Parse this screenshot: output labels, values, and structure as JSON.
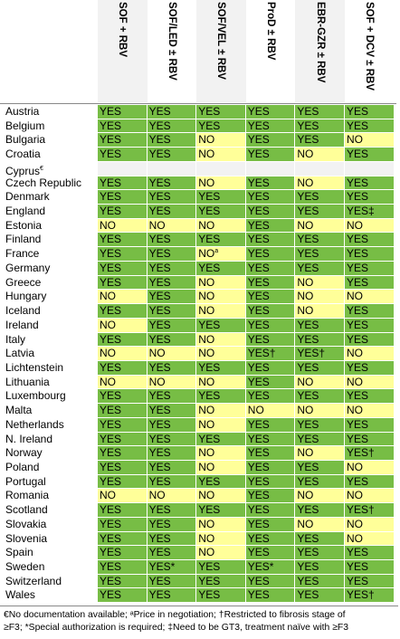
{
  "header": {
    "columns": [
      "SOF + RBV",
      "SOF/LED ± RBV",
      "SOF/VEL ± RBV",
      "ProD ± RBV",
      "EBR-GZR ± RBV",
      "SOF + DCV ± RBV"
    ]
  },
  "colors": {
    "yes": "#77bd45",
    "no": "#ffff99",
    "blank": "#f2f2f2"
  },
  "rows": [
    {
      "country": "Austria",
      "values": [
        "YES",
        "YES",
        "YES",
        "YES",
        "YES",
        "YES"
      ]
    },
    {
      "country": "Belgium",
      "values": [
        "YES",
        "YES",
        "YES",
        "YES",
        "YES",
        "YES"
      ]
    },
    {
      "country": "Bulgaria",
      "values": [
        "YES",
        "YES",
        "NO",
        "YES",
        "YES",
        "NO"
      ]
    },
    {
      "country": "Croatia",
      "values": [
        "YES",
        "YES",
        "NO",
        "YES",
        "NO",
        "YES"
      ]
    },
    {
      "country": "Cyprus",
      "country_sup": "€",
      "values": [
        "",
        "",
        "",
        "",
        "",
        ""
      ]
    },
    {
      "country": "Czech Republic",
      "values": [
        "YES",
        "YES",
        "NO",
        "YES",
        "NO",
        "YES"
      ]
    },
    {
      "country": "Denmark",
      "values": [
        "YES",
        "YES",
        "YES",
        "YES",
        "YES",
        "YES"
      ]
    },
    {
      "country": "England",
      "values": [
        "YES",
        "YES",
        "YES",
        "YES",
        "YES",
        "YES‡"
      ]
    },
    {
      "country": "Estonia",
      "values": [
        "NO",
        "NO",
        "NO",
        "YES",
        "NO",
        "NO"
      ]
    },
    {
      "country": "Finland",
      "values": [
        "YES",
        "YES",
        "YES",
        "YES",
        "YES",
        "YES"
      ]
    },
    {
      "country": "France",
      "values": [
        "YES",
        "YES",
        "NOa",
        "YES",
        "YES",
        "YES"
      ]
    },
    {
      "country": "Germany",
      "values": [
        "YES",
        "YES",
        "YES",
        "YES",
        "YES",
        "YES"
      ]
    },
    {
      "country": "Greece",
      "values": [
        "YES",
        "YES",
        "NO",
        "YES",
        "NO",
        "YES"
      ]
    },
    {
      "country": "Hungary",
      "values": [
        "NO",
        "YES",
        "NO",
        "YES",
        "NO",
        "NO"
      ]
    },
    {
      "country": "Iceland",
      "values": [
        "YES",
        "YES",
        "NO",
        "YES",
        "NO",
        "YES"
      ]
    },
    {
      "country": "Ireland",
      "values": [
        "NO",
        "YES",
        "YES",
        "YES",
        "YES",
        "YES"
      ]
    },
    {
      "country": "Italy",
      "values": [
        "YES",
        "YES",
        "NO",
        "YES",
        "YES",
        "YES"
      ]
    },
    {
      "country": "Latvia",
      "values": [
        "NO",
        "NO",
        "NO",
        "YES†",
        "YES†",
        "NO"
      ]
    },
    {
      "country": "Lichtenstein",
      "values": [
        "YES",
        "YES",
        "YES",
        "YES",
        "YES",
        "YES"
      ]
    },
    {
      "country": "Lithuania",
      "values": [
        "NO",
        "NO",
        "NO",
        "YES",
        "NO",
        "NO"
      ]
    },
    {
      "country": "Luxembourg",
      "values": [
        "YES",
        "YES",
        "YES",
        "YES",
        "YES",
        "YES"
      ]
    },
    {
      "country": "Malta",
      "values": [
        "YES",
        "YES",
        "NO",
        "NO",
        "NO",
        "NO"
      ]
    },
    {
      "country": "Netherlands",
      "values": [
        "YES",
        "YES",
        "NO",
        "YES",
        "YES",
        "YES"
      ]
    },
    {
      "country": "N. Ireland",
      "values": [
        "YES",
        "YES",
        "YES",
        "YES",
        "YES",
        "YES"
      ]
    },
    {
      "country": "Norway",
      "values": [
        "YES",
        "YES",
        "NO",
        "YES",
        "NO",
        "YES†"
      ]
    },
    {
      "country": "Poland",
      "values": [
        "YES",
        "YES",
        "NO",
        "YES",
        "YES",
        "NO"
      ]
    },
    {
      "country": "Portugal",
      "values": [
        "YES",
        "YES",
        "YES",
        "YES",
        "YES",
        "YES"
      ]
    },
    {
      "country": "Romania",
      "values": [
        "NO",
        "NO",
        "NO",
        "YES",
        "NO",
        "NO"
      ]
    },
    {
      "country": "Scotland",
      "values": [
        "YES",
        "YES",
        "YES",
        "YES",
        "YES",
        "YES†"
      ]
    },
    {
      "country": "Slovakia",
      "values": [
        "YES",
        "YES",
        "NO",
        "YES",
        "NO",
        "NO"
      ]
    },
    {
      "country": "Slovenia",
      "values": [
        "YES",
        "YES",
        "NO",
        "YES",
        "YES",
        "NO"
      ]
    },
    {
      "country": "Spain",
      "values": [
        "YES",
        "YES",
        "NO",
        "YES",
        "YES",
        "YES"
      ]
    },
    {
      "country": "Sweden",
      "values": [
        "YES",
        "YES*",
        "YES",
        "YES*",
        "YES",
        "YES"
      ]
    },
    {
      "country": "Switzerland",
      "values": [
        "YES",
        "YES",
        "YES",
        "YES",
        "YES",
        "YES"
      ]
    },
    {
      "country": "Wales",
      "values": [
        "YES",
        "YES",
        "YES",
        "YES",
        "YES",
        "YES†"
      ]
    }
  ],
  "footnote": {
    "line1": "€No documentation available; ᵃPrice in negotiation; †Restricted to fibrosis stage of",
    "line2": "≥F3; *Special authorization is required; ‡Need to be GT3, treatment naïve with ≥F3"
  }
}
